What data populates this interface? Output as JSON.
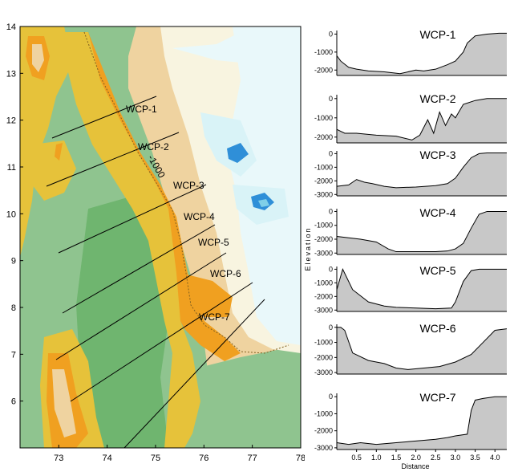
{
  "map": {
    "x_ticks": [
      "73",
      "74",
      "75",
      "76",
      "77",
      "78"
    ],
    "y_ticks": [
      "6",
      "7",
      "8",
      "9",
      "10",
      "11",
      "12",
      "13",
      "14"
    ],
    "contour_label": "-1000",
    "profile_labels": [
      "WCP-1",
      "WCP-2",
      "WCP-3",
      "WCP-4",
      "WCP-5",
      "WCP-6",
      "WCP-7"
    ],
    "colors": {
      "deep_green": "#6fb56f",
      "mid_green": "#8fc48f",
      "yellow": "#e6c23a",
      "orange": "#f0a020",
      "tan": "#efd3a0",
      "cream": "#f8f4e0",
      "light_cyan": "#d9f3f7",
      "blue": "#2f8fd8"
    }
  },
  "chart_data": {
    "type": "area",
    "xlabel": "Distance",
    "ylabel": "Elevation",
    "x_ticks": [
      "0.5",
      "1.0",
      "1.5",
      "2.0",
      "2.5",
      "3.0",
      "3.5",
      "4.0"
    ],
    "xlim": [
      0,
      4.3
    ],
    "fill_color": "#c8c8c8",
    "series": [
      {
        "name": "WCP-1",
        "yticks": [
          "0",
          "-1000",
          "-2000"
        ],
        "ylim": [
          -2300,
          200
        ],
        "x": [
          0,
          0.1,
          0.3,
          0.5,
          0.8,
          1.2,
          1.6,
          2.0,
          2.2,
          2.5,
          2.8,
          3.0,
          3.2,
          3.3,
          3.5,
          3.8,
          4.1,
          4.3
        ],
        "y": [
          -1200,
          -1500,
          -1850,
          -1950,
          -2050,
          -2100,
          -2200,
          -2000,
          -2050,
          -1950,
          -1700,
          -1500,
          -1000,
          -500,
          -100,
          0,
          50,
          50
        ]
      },
      {
        "name": "WCP-2",
        "yticks": [
          "0",
          "-1000",
          "-2000"
        ],
        "ylim": [
          -2300,
          200
        ],
        "x": [
          0,
          0.2,
          0.5,
          1.0,
          1.5,
          1.9,
          2.1,
          2.3,
          2.45,
          2.6,
          2.75,
          2.9,
          3.0,
          3.2,
          3.5,
          3.8,
          4.3
        ],
        "y": [
          -1600,
          -1800,
          -1800,
          -1900,
          -1950,
          -2150,
          -1900,
          -1100,
          -1800,
          -700,
          -1400,
          -800,
          -1000,
          -300,
          -100,
          0,
          0
        ]
      },
      {
        "name": "WCP-3",
        "yticks": [
          "0",
          "-1000",
          "-2000",
          "-3000"
        ],
        "ylim": [
          -3100,
          200
        ],
        "x": [
          0,
          0.3,
          0.5,
          0.7,
          0.9,
          1.2,
          1.5,
          2.0,
          2.5,
          2.8,
          3.0,
          3.2,
          3.4,
          3.6,
          3.8,
          4.3
        ],
        "y": [
          -2400,
          -2300,
          -1900,
          -2100,
          -2200,
          -2400,
          -2500,
          -2450,
          -2350,
          -2200,
          -1800,
          -1000,
          -300,
          0,
          50,
          50
        ]
      },
      {
        "name": "WCP-4",
        "yticks": [
          "0",
          "-1000",
          "-2000",
          "-3000"
        ],
        "ylim": [
          -3100,
          200
        ],
        "x": [
          0,
          0.3,
          0.6,
          1.0,
          1.3,
          1.5,
          2.0,
          2.5,
          2.8,
          3.0,
          3.2,
          3.4,
          3.6,
          3.8,
          4.3
        ],
        "y": [
          -1800,
          -1900,
          -2000,
          -2200,
          -2700,
          -2900,
          -2900,
          -2900,
          -2850,
          -2700,
          -2300,
          -1200,
          -200,
          0,
          0
        ]
      },
      {
        "name": "WCP-5",
        "yticks": [
          "0",
          "-1000",
          "-2000",
          "-3000"
        ],
        "ylim": [
          -3100,
          200
        ],
        "x": [
          0,
          0.15,
          0.4,
          0.8,
          1.2,
          1.5,
          2.0,
          2.5,
          2.9,
          3.0,
          3.2,
          3.4,
          3.6,
          3.9,
          4.3
        ],
        "y": [
          -1500,
          0,
          -1500,
          -2400,
          -2700,
          -2800,
          -2850,
          -2900,
          -2850,
          -2400,
          -900,
          -100,
          0,
          0,
          0
        ]
      },
      {
        "name": "WCP-6",
        "yticks": [
          "0",
          "-1000",
          "-2000",
          "-3000"
        ],
        "ylim": [
          -3100,
          200
        ],
        "x": [
          0,
          0.1,
          0.2,
          0.4,
          0.8,
          1.2,
          1.5,
          1.8,
          2.2,
          2.6,
          3.0,
          3.4,
          3.7,
          4.0,
          4.3
        ],
        "y": [
          0,
          0,
          -200,
          -1700,
          -2200,
          -2400,
          -2700,
          -2800,
          -2700,
          -2600,
          -2300,
          -1800,
          -1000,
          -200,
          -100
        ]
      },
      {
        "name": "WCP-7",
        "yticks": [
          "0",
          "-1000",
          "-2000",
          "-3000"
        ],
        "ylim": [
          -3100,
          200
        ],
        "x": [
          0,
          0.3,
          0.6,
          1.0,
          1.5,
          2.0,
          2.5,
          2.8,
          3.0,
          3.3,
          3.4,
          3.5,
          3.7,
          4.0,
          4.3
        ],
        "y": [
          -2700,
          -2800,
          -2700,
          -2800,
          -2700,
          -2600,
          -2500,
          -2400,
          -2300,
          -2200,
          -800,
          -200,
          -100,
          0,
          0
        ]
      }
    ]
  }
}
